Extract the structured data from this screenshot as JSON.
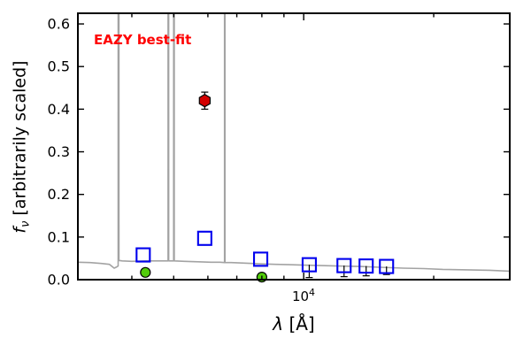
{
  "chart_data": {
    "type": "scatter",
    "title": "",
    "annotation": {
      "text": "EAZY best-fit",
      "color": "#ff0000",
      "bold": true,
      "position": "top-left"
    },
    "labels": {
      "xlabel_symbol": "λ",
      "xlabel_rest": " [Å]",
      "ylabel_symbol": "f",
      "ylabel_sub": "ν",
      "ylabel_rest": " [arbitrarily scaled]",
      "xtick_base": "10",
      "xtick_exp": "4"
    },
    "axes": {
      "xscale": "log",
      "xlabel": "λ [Å]",
      "ylabel": "f_ν [arbitrarily scaled]",
      "xlim": [
        3000,
        30000
      ],
      "ylim": [
        0,
        0.625
      ],
      "yticks": [
        0,
        0.1,
        0.2,
        0.3,
        0.4,
        0.5,
        0.6
      ],
      "xticks_major": [
        10000
      ],
      "xticks_minor": [
        4000,
        5000,
        6000,
        7000,
        8000,
        9000,
        20000
      ],
      "frame_color": "#000000",
      "grid": false
    },
    "series": [
      {
        "name": "best-fit-template-spectrum",
        "type": "line",
        "color": "#a3a3a3",
        "x": [
          3000,
          3200,
          3400,
          3550,
          3640,
          3690,
          3719,
          3727,
          3735,
          3800,
          4000,
          4300,
          4600,
          4853,
          4861,
          4869,
          4999,
          5007,
          5015,
          5300,
          5700,
          6100,
          6400,
          6555,
          6563,
          6571,
          6800,
          7200,
          7600,
          8000,
          8600,
          9300,
          10000,
          11000,
          12000,
          13500,
          15000,
          17000,
          19000,
          21000,
          24000,
          27000,
          30000
        ],
        "y": [
          0.041,
          0.04,
          0.038,
          0.036,
          0.027,
          0.03,
          0.032,
          8,
          0.045,
          0.044,
          0.043,
          0.044,
          0.044,
          0.044,
          8,
          0.044,
          0.044,
          8,
          0.044,
          0.043,
          0.042,
          0.041,
          0.041,
          0.04,
          8,
          0.04,
          0.04,
          0.039,
          0.038,
          0.037,
          0.036,
          0.035,
          0.034,
          0.033,
          0.032,
          0.031,
          0.029,
          0.027,
          0.026,
          0.024,
          0.023,
          0.022,
          0.02
        ]
      },
      {
        "name": "template-photometry",
        "type": "scatter",
        "marker": "open-square",
        "color": "#0000ee",
        "points": [
          {
            "x": 4250,
            "y": 0.058
          },
          {
            "x": 5900,
            "y": 0.097
          },
          {
            "x": 7950,
            "y": 0.048
          },
          {
            "x": 10300,
            "y": 0.035,
            "err_lo": 0.03
          },
          {
            "x": 12400,
            "y": 0.033,
            "err_lo": 0.026
          },
          {
            "x": 13950,
            "y": 0.032,
            "err_lo": 0.023
          },
          {
            "x": 15550,
            "y": 0.031,
            "err_lo": 0.019
          }
        ]
      },
      {
        "name": "observed-photometry-circles",
        "type": "scatter",
        "marker": "filled-circle",
        "color": "#52cc0a",
        "edge": "#000000",
        "points": [
          {
            "x": 4300,
            "y": 0.017
          },
          {
            "x": 8000,
            "y": 0.006
          }
        ]
      },
      {
        "name": "observed-photometry-hexagon",
        "type": "scatter",
        "marker": "filled-hexagon",
        "color": "#d40000",
        "edge": "#000000",
        "points": [
          {
            "x": 5900,
            "y": 0.42,
            "err": 0.02
          }
        ]
      }
    ]
  }
}
